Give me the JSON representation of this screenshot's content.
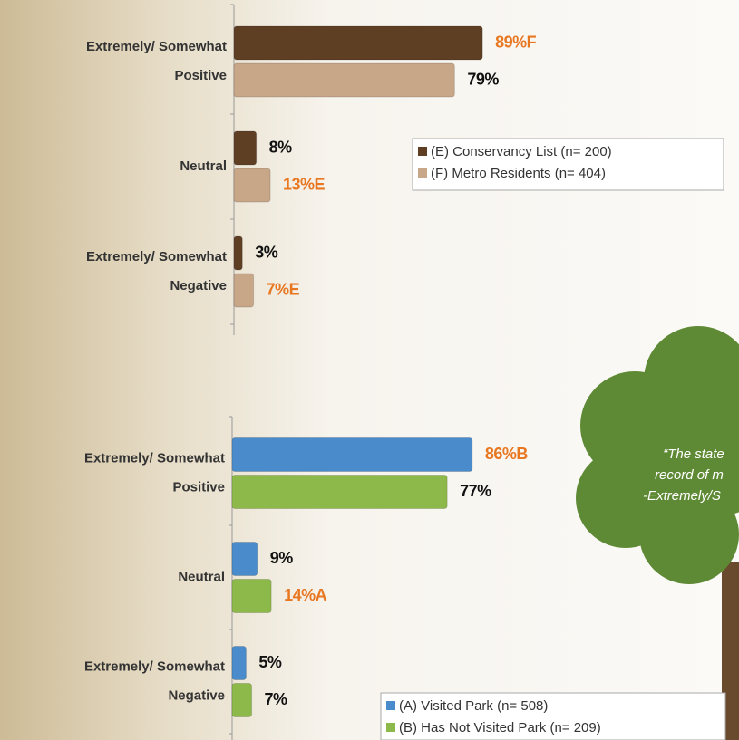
{
  "chart_data": [
    {
      "type": "bar",
      "orientation": "horizontal",
      "categories": [
        [
          "Extremely/ Somewhat",
          "Positive"
        ],
        [
          "Neutral"
        ],
        [
          "Extremely/ Somewhat",
          "Negative"
        ]
      ],
      "xlim": [
        0,
        100
      ],
      "series": [
        {
          "name": "(E) Conservancy List (n= 200)",
          "color": "#5e3f24",
          "values": [
            89,
            8,
            3
          ],
          "value_labels": [
            "89%F",
            "8%",
            "3%"
          ],
          "label_colors": [
            "#e87722",
            "#111111",
            "#111111"
          ]
        },
        {
          "name": "(F) Metro Residents (n= 404)",
          "color": "#c8a688",
          "values": [
            79,
            13,
            7
          ],
          "value_labels": [
            "79%",
            "13%E",
            "7%E"
          ],
          "label_colors": [
            "#111111",
            "#e87722",
            "#e87722"
          ]
        }
      ]
    },
    {
      "type": "bar",
      "orientation": "horizontal",
      "categories": [
        [
          "Extremely/ Somewhat",
          "Positive"
        ],
        [
          "Neutral"
        ],
        [
          "Extremely/ Somewhat",
          "Negative"
        ]
      ],
      "xlim": [
        0,
        100
      ],
      "series": [
        {
          "name": "(A) Visited Park  (n= 508)",
          "color": "#4a8ccb",
          "values": [
            86,
            9,
            5
          ],
          "value_labels": [
            "86%B",
            "9%",
            "5%"
          ],
          "label_colors": [
            "#e87722",
            "#111111",
            "#111111"
          ]
        },
        {
          "name": "(B) Has Not Visited Park (n= 209)",
          "color": "#8db94a",
          "values": [
            77,
            14,
            7
          ],
          "value_labels": [
            "77%",
            "14%A",
            "7%"
          ],
          "label_colors": [
            "#111111",
            "#e87722",
            "#111111"
          ]
        }
      ]
    }
  ],
  "callout": {
    "lines": [
      "“The state",
      "record of m",
      "-Extremely/S"
    ]
  }
}
